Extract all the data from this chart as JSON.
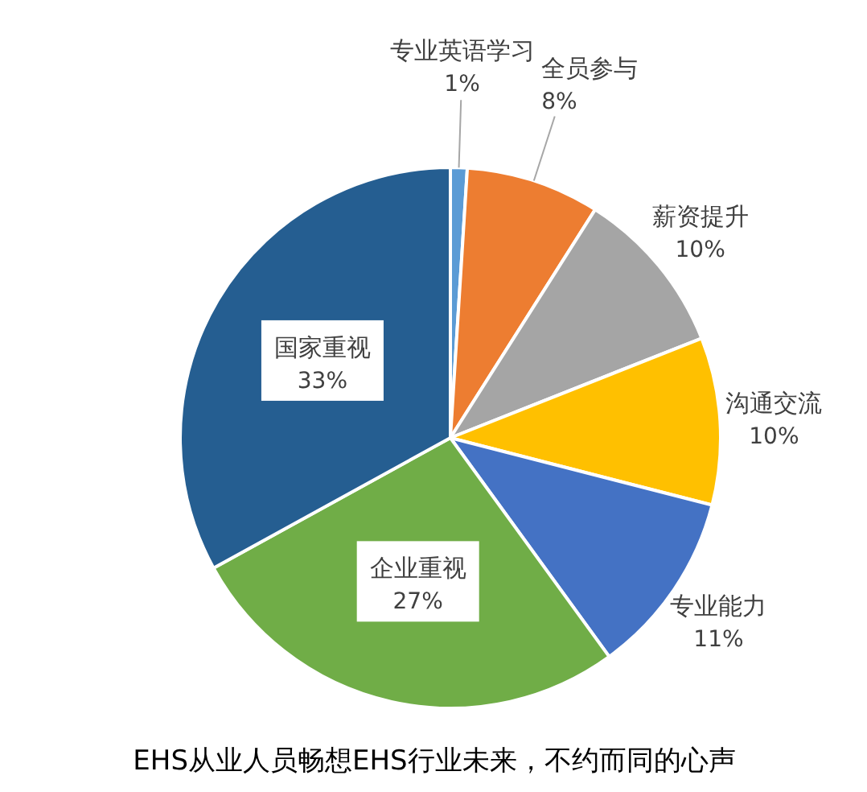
{
  "chart_data": {
    "type": "pie",
    "title": "EHS从业人员畅想EHS行业未来，不约而同的心声",
    "categories": [
      "专业英语学习",
      "全员参与",
      "薪资提升",
      "沟通交流",
      "专业能力",
      "企业重视",
      "国家重视"
    ],
    "values": [
      1,
      8,
      10,
      10,
      11,
      27,
      33
    ],
    "value_labels": [
      "1%",
      "8%",
      "10%",
      "10%",
      "11%",
      "27%",
      "33%"
    ],
    "colors": [
      "#5b9bd5",
      "#ed7d31",
      "#a5a5a5",
      "#ffc000",
      "#4472c4",
      "#70ad47",
      "#255e91"
    ]
  }
}
